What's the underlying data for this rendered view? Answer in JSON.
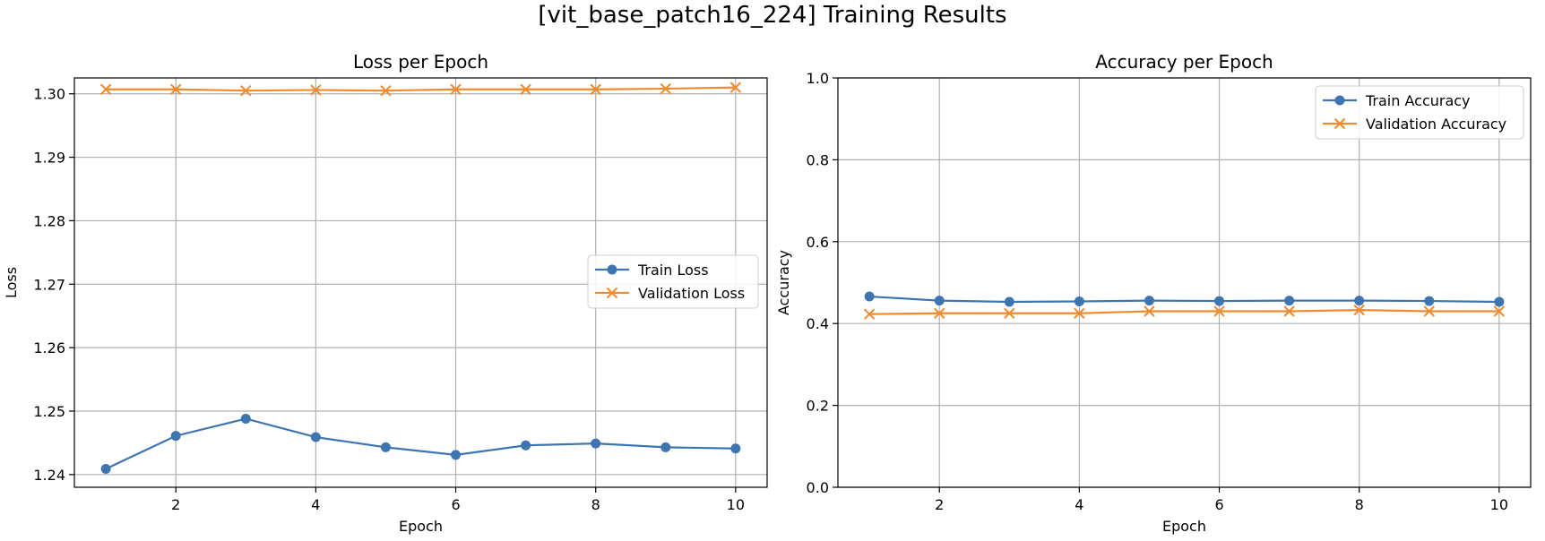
{
  "figure": {
    "suptitle": "[vit_base_patch16_224] Training Results"
  },
  "colors": {
    "train": "#3e75b1",
    "validation": "#f08a2e",
    "grid": "#b0b0b0"
  },
  "chart_data": [
    {
      "type": "line",
      "title": "Loss per Epoch",
      "xlabel": "Epoch",
      "ylabel": "Loss",
      "xlim": [
        0.55,
        10.45
      ],
      "ylim": [
        1.238,
        1.3025
      ],
      "xticks": [
        2,
        4,
        6,
        8,
        10
      ],
      "yticks": [
        1.24,
        1.25,
        1.26,
        1.27,
        1.28,
        1.29,
        1.3
      ],
      "ytick_labels": [
        "1.24",
        "1.25",
        "1.26",
        "1.27",
        "1.28",
        "1.29",
        "1.30"
      ],
      "grid": true,
      "legend": "center-right",
      "x": [
        1,
        2,
        3,
        4,
        5,
        6,
        7,
        8,
        9,
        10
      ],
      "series": [
        {
          "name": "Train Loss",
          "marker": "circle",
          "color_key": "train",
          "values": [
            1.2409,
            1.2461,
            1.2488,
            1.2459,
            1.2443,
            1.2431,
            1.2446,
            1.2449,
            1.2443,
            1.2441
          ]
        },
        {
          "name": "Validation Loss",
          "marker": "x",
          "color_key": "validation",
          "values": [
            1.3007,
            1.3007,
            1.3005,
            1.3006,
            1.3005,
            1.3007,
            1.3007,
            1.3007,
            1.3008,
            1.301
          ]
        }
      ]
    },
    {
      "type": "line",
      "title": "Accuracy per Epoch",
      "xlabel": "Epoch",
      "ylabel": "Accuracy",
      "xlim": [
        0.55,
        10.45
      ],
      "ylim": [
        0.0,
        1.0
      ],
      "xticks": [
        2,
        4,
        6,
        8,
        10
      ],
      "yticks": [
        0.0,
        0.2,
        0.4,
        0.6,
        0.8,
        1.0
      ],
      "ytick_labels": [
        "0.0",
        "0.2",
        "0.4",
        "0.6",
        "0.8",
        "1.0"
      ],
      "grid": true,
      "legend": "top-right",
      "x": [
        1,
        2,
        3,
        4,
        5,
        6,
        7,
        8,
        9,
        10
      ],
      "series": [
        {
          "name": "Train Accuracy",
          "marker": "circle",
          "color_key": "train",
          "values": [
            0.466,
            0.456,
            0.453,
            0.454,
            0.456,
            0.455,
            0.456,
            0.456,
            0.455,
            0.453
          ]
        },
        {
          "name": "Validation Accuracy",
          "marker": "x",
          "color_key": "validation",
          "values": [
            0.423,
            0.425,
            0.425,
            0.425,
            0.43,
            0.43,
            0.43,
            0.433,
            0.43,
            0.43
          ]
        }
      ]
    }
  ]
}
